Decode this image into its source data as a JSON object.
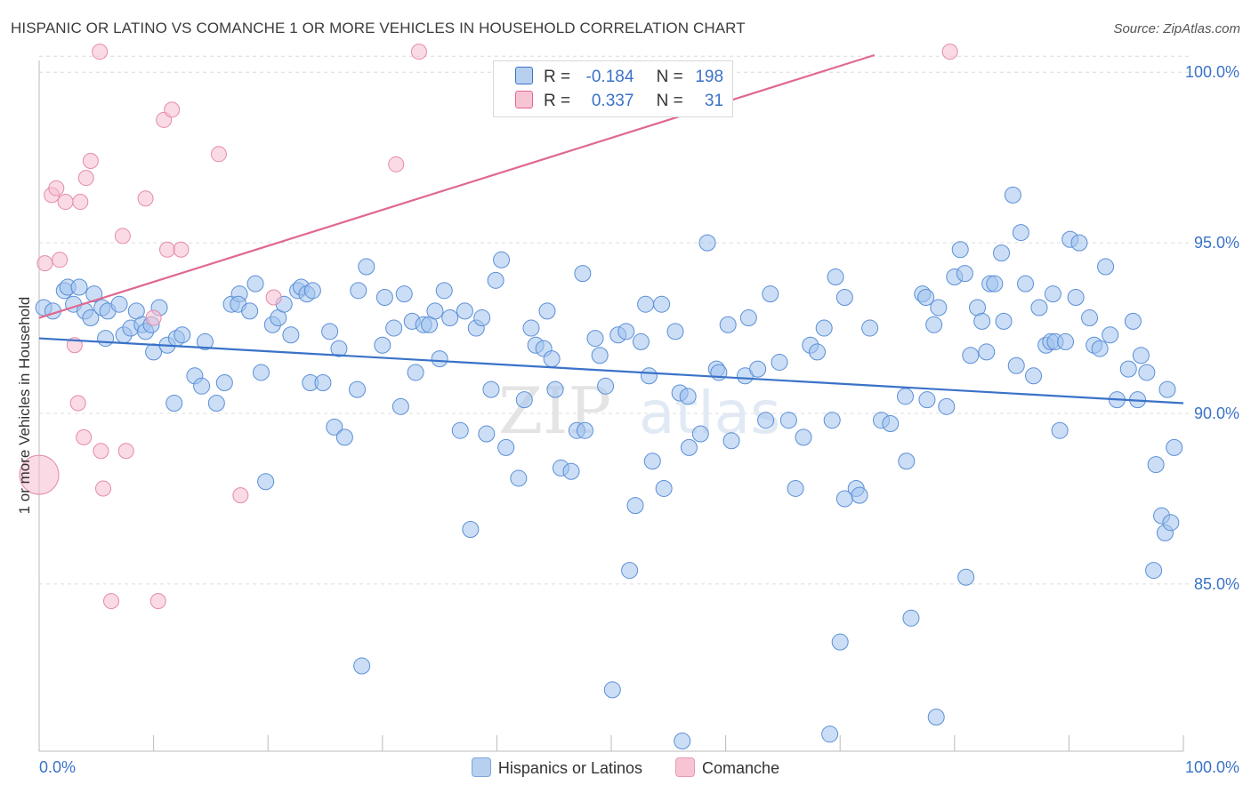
{
  "title": "HISPANIC OR LATINO VS COMANCHE 1 OR MORE VEHICLES IN HOUSEHOLD CORRELATION CHART",
  "source": "Source: ZipAtlas.com",
  "colors": {
    "blue": "#3a72c8",
    "blue_fill": "#b7d0f0",
    "pink": "#e06890",
    "pink_fill": "#f7c4d4",
    "grid": "#d9d9d9",
    "tick_label": "#3a72c8"
  },
  "stats": {
    "row1": {
      "r_label": "R =",
      "r_value": "-0.184",
      "n_label": "N =",
      "n_value": "198"
    },
    "row2": {
      "r_label": "R =",
      "r_value": "0.337",
      "n_label": "N =",
      "n_value": "31"
    }
  },
  "legend": {
    "item1": "Hispanics or Latinos",
    "item2": "Comanche"
  },
  "chart_data": {
    "type": "scatter",
    "title": "HISPANIC OR LATINO VS COMANCHE 1 OR MORE VEHICLES IN HOUSEHOLD CORRELATION CHART",
    "xlabel": "",
    "ylabel": "1 or more Vehicles in Household",
    "xlim": [
      0,
      100
    ],
    "ylim": [
      80.1,
      100.5
    ],
    "x_tick_labels": [
      "0.0%",
      "100.0%"
    ],
    "y_ticks": [
      85,
      90,
      95,
      100
    ],
    "y_tick_labels": [
      "85.0%",
      "90.0%",
      "95.0%",
      "100.0%"
    ],
    "grid": true,
    "legend_position": "bottom",
    "series": [
      {
        "name": "Hispanics or Latinos",
        "color": "#3a72c8",
        "trend": [
          [
            0,
            92.2
          ],
          [
            100,
            90.3
          ]
        ],
        "points": [
          [
            0.4,
            93.1
          ],
          [
            1.2,
            93.0
          ],
          [
            2.2,
            93.6
          ],
          [
            2.5,
            93.7
          ],
          [
            3.0,
            93.2
          ],
          [
            3.5,
            93.7
          ],
          [
            4.0,
            93.0
          ],
          [
            4.5,
            92.8
          ],
          [
            4.8,
            93.5
          ],
          [
            5.5,
            93.1
          ],
          [
            6.0,
            93.0
          ],
          [
            5.8,
            92.2
          ],
          [
            7.0,
            93.2
          ],
          [
            7.4,
            92.3
          ],
          [
            8.0,
            92.5
          ],
          [
            8.5,
            93.0
          ],
          [
            9.0,
            92.6
          ],
          [
            9.3,
            92.4
          ],
          [
            9.8,
            92.6
          ],
          [
            10.5,
            93.1
          ],
          [
            10.0,
            91.8
          ],
          [
            11.2,
            92.0
          ],
          [
            12.0,
            92.2
          ],
          [
            12.5,
            92.3
          ],
          [
            14.5,
            92.1
          ],
          [
            11.8,
            90.3
          ],
          [
            13.6,
            91.1
          ],
          [
            14.2,
            90.8
          ],
          [
            15.5,
            90.3
          ],
          [
            16.2,
            90.9
          ],
          [
            16.8,
            93.2
          ],
          [
            17.5,
            93.5
          ],
          [
            17.4,
            93.2
          ],
          [
            18.4,
            93.0
          ],
          [
            18.9,
            93.8
          ],
          [
            19.4,
            91.2
          ],
          [
            19.8,
            88.0
          ],
          [
            20.4,
            92.6
          ],
          [
            20.9,
            92.8
          ],
          [
            21.4,
            93.2
          ],
          [
            22.0,
            92.3
          ],
          [
            22.6,
            93.6
          ],
          [
            22.9,
            93.7
          ],
          [
            23.4,
            93.5
          ],
          [
            23.9,
            93.6
          ],
          [
            23.7,
            90.9
          ],
          [
            24.8,
            90.9
          ],
          [
            25.4,
            92.4
          ],
          [
            25.8,
            89.6
          ],
          [
            26.2,
            91.9
          ],
          [
            26.7,
            89.3
          ],
          [
            27.8,
            90.7
          ],
          [
            27.9,
            93.6
          ],
          [
            28.6,
            94.3
          ],
          [
            28.2,
            82.6
          ],
          [
            30.0,
            92.0
          ],
          [
            30.2,
            93.4
          ],
          [
            31.0,
            92.5
          ],
          [
            31.6,
            90.2
          ],
          [
            31.9,
            93.5
          ],
          [
            32.6,
            92.7
          ],
          [
            32.9,
            91.2
          ],
          [
            33.6,
            92.6
          ],
          [
            34.1,
            92.6
          ],
          [
            34.6,
            93.0
          ],
          [
            35.0,
            91.6
          ],
          [
            35.4,
            93.6
          ],
          [
            35.9,
            92.8
          ],
          [
            36.8,
            89.5
          ],
          [
            37.2,
            93.0
          ],
          [
            37.7,
            86.6
          ],
          [
            38.2,
            92.5
          ],
          [
            38.7,
            92.8
          ],
          [
            39.1,
            89.4
          ],
          [
            39.5,
            90.7
          ],
          [
            39.9,
            93.9
          ],
          [
            40.4,
            94.5
          ],
          [
            40.8,
            89.0
          ],
          [
            41.9,
            88.1
          ],
          [
            42.4,
            90.4
          ],
          [
            43.0,
            92.5
          ],
          [
            43.4,
            92.0
          ],
          [
            44.1,
            91.9
          ],
          [
            44.4,
            93.0
          ],
          [
            44.8,
            91.6
          ],
          [
            45.1,
            90.7
          ],
          [
            45.6,
            88.4
          ],
          [
            46.5,
            88.3
          ],
          [
            47.0,
            89.5
          ],
          [
            47.5,
            94.1
          ],
          [
            47.7,
            89.5
          ],
          [
            48.6,
            92.2
          ],
          [
            49.0,
            91.7
          ],
          [
            49.5,
            90.8
          ],
          [
            50.1,
            81.9
          ],
          [
            50.6,
            92.3
          ],
          [
            51.3,
            92.4
          ],
          [
            51.6,
            85.4
          ],
          [
            52.1,
            87.3
          ],
          [
            52.6,
            92.1
          ],
          [
            53.0,
            93.2
          ],
          [
            53.3,
            91.1
          ],
          [
            53.6,
            88.6
          ],
          [
            54.4,
            93.2
          ],
          [
            54.6,
            87.8
          ],
          [
            55.6,
            92.4
          ],
          [
            56.0,
            90.6
          ],
          [
            56.2,
            80.4
          ],
          [
            56.8,
            89.0
          ],
          [
            56.7,
            90.5
          ],
          [
            57.8,
            89.4
          ],
          [
            58.4,
            95.0
          ],
          [
            59.2,
            91.3
          ],
          [
            59.4,
            91.2
          ],
          [
            60.2,
            92.6
          ],
          [
            60.5,
            89.2
          ],
          [
            61.7,
            91.1
          ],
          [
            62.0,
            92.8
          ],
          [
            62.8,
            91.3
          ],
          [
            63.5,
            89.8
          ],
          [
            63.9,
            93.5
          ],
          [
            64.7,
            91.5
          ],
          [
            65.5,
            89.8
          ],
          [
            66.1,
            87.8
          ],
          [
            66.8,
            89.3
          ],
          [
            67.4,
            92.0
          ],
          [
            68.0,
            91.8
          ],
          [
            68.6,
            92.5
          ],
          [
            69.1,
            80.6
          ],
          [
            69.3,
            89.8
          ],
          [
            69.6,
            94.0
          ],
          [
            70.0,
            83.3
          ],
          [
            70.4,
            87.5
          ],
          [
            70.4,
            93.4
          ],
          [
            71.4,
            87.8
          ],
          [
            71.7,
            87.6
          ],
          [
            72.6,
            92.5
          ],
          [
            73.6,
            89.8
          ],
          [
            74.4,
            89.7
          ],
          [
            75.7,
            90.5
          ],
          [
            75.8,
            88.6
          ],
          [
            76.2,
            84.0
          ],
          [
            77.2,
            93.5
          ],
          [
            77.5,
            93.4
          ],
          [
            77.6,
            90.4
          ],
          [
            78.2,
            92.6
          ],
          [
            78.6,
            93.1
          ],
          [
            78.4,
            81.1
          ],
          [
            79.3,
            90.2
          ],
          [
            80.0,
            94.0
          ],
          [
            80.5,
            94.8
          ],
          [
            80.9,
            94.1
          ],
          [
            81.0,
            85.2
          ],
          [
            81.4,
            91.7
          ],
          [
            82.0,
            93.1
          ],
          [
            82.4,
            92.7
          ],
          [
            82.8,
            91.8
          ],
          [
            83.1,
            93.8
          ],
          [
            83.5,
            93.8
          ],
          [
            84.1,
            94.7
          ],
          [
            84.3,
            92.7
          ],
          [
            85.1,
            96.4
          ],
          [
            85.4,
            91.4
          ],
          [
            85.8,
            95.3
          ],
          [
            86.2,
            93.8
          ],
          [
            86.9,
            91.1
          ],
          [
            87.4,
            93.1
          ],
          [
            88.0,
            92.0
          ],
          [
            88.4,
            92.1
          ],
          [
            88.6,
            93.5
          ],
          [
            88.8,
            92.1
          ],
          [
            89.2,
            89.5
          ],
          [
            89.7,
            92.1
          ],
          [
            90.1,
            95.1
          ],
          [
            90.6,
            93.4
          ],
          [
            90.9,
            95.0
          ],
          [
            91.8,
            92.8
          ],
          [
            92.2,
            92.0
          ],
          [
            92.7,
            91.9
          ],
          [
            93.2,
            94.3
          ],
          [
            93.6,
            92.3
          ],
          [
            94.2,
            90.4
          ],
          [
            95.2,
            91.3
          ],
          [
            95.6,
            92.7
          ],
          [
            96.0,
            90.4
          ],
          [
            96.3,
            91.7
          ],
          [
            96.8,
            91.2
          ],
          [
            97.4,
            85.4
          ],
          [
            97.6,
            88.5
          ],
          [
            98.1,
            87.0
          ],
          [
            98.6,
            90.7
          ],
          [
            98.4,
            86.5
          ],
          [
            98.9,
            86.8
          ],
          [
            99.2,
            89.0
          ]
        ]
      },
      {
        "name": "Comanche",
        "color": "#e06890",
        "trend": [
          [
            0,
            92.8
          ],
          [
            73,
            100.5
          ]
        ],
        "points": [
          [
            0.5,
            94.4
          ],
          [
            1.1,
            96.4
          ],
          [
            1.5,
            96.6
          ],
          [
            1.8,
            94.5
          ],
          [
            2.3,
            96.2
          ],
          [
            3.1,
            92.0
          ],
          [
            3.4,
            90.3
          ],
          [
            3.6,
            96.2
          ],
          [
            3.9,
            89.3
          ],
          [
            4.1,
            96.9
          ],
          [
            4.5,
            97.4
          ],
          [
            5.3,
            100.6
          ],
          [
            5.4,
            88.9
          ],
          [
            5.6,
            87.8
          ],
          [
            6.3,
            84.5
          ],
          [
            7.3,
            95.2
          ],
          [
            7.6,
            88.9
          ],
          [
            9.3,
            96.3
          ],
          [
            10.0,
            92.8
          ],
          [
            10.4,
            84.5
          ],
          [
            10.9,
            98.6
          ],
          [
            11.2,
            94.8
          ],
          [
            11.6,
            98.9
          ],
          [
            12.4,
            94.8
          ],
          [
            15.7,
            97.6
          ],
          [
            17.6,
            87.6
          ],
          [
            20.5,
            93.4
          ],
          [
            31.2,
            97.3
          ],
          [
            33.2,
            100.6
          ],
          [
            79.6,
            100.6
          ],
          [
            0.0,
            88.2
          ]
        ]
      }
    ]
  }
}
